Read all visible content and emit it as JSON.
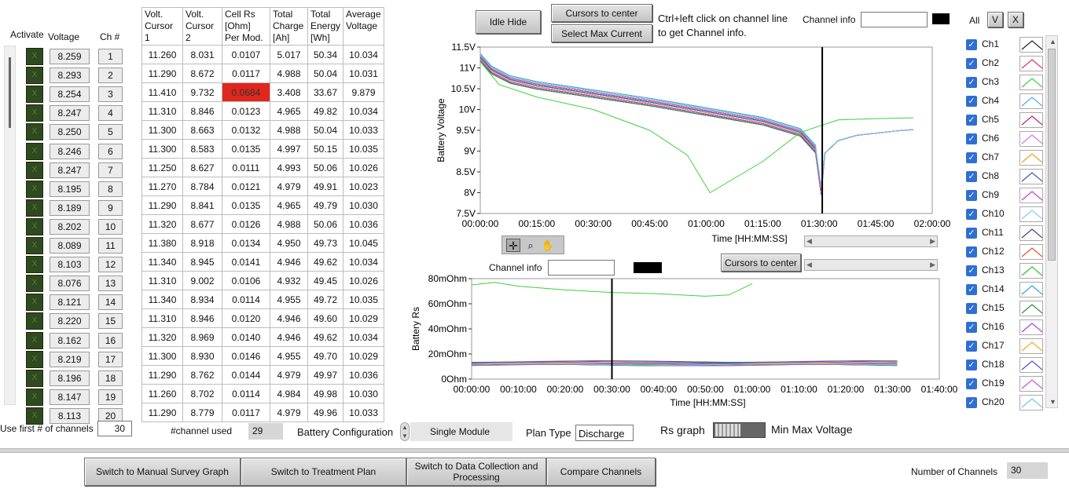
{
  "left_table": {
    "activate_label": "Activate",
    "voltage_label": "Voltage",
    "ch_label": "Ch #",
    "activate_mark": "X",
    "rows": [
      {
        "v": "8.259",
        "ch": "1"
      },
      {
        "v": "8.293",
        "ch": "2"
      },
      {
        "v": "8.254",
        "ch": "3"
      },
      {
        "v": "8.247",
        "ch": "4"
      },
      {
        "v": "8.250",
        "ch": "5"
      },
      {
        "v": "8.246",
        "ch": "6"
      },
      {
        "v": "8.247",
        "ch": "7"
      },
      {
        "v": "8.195",
        "ch": "8"
      },
      {
        "v": "8.189",
        "ch": "9"
      },
      {
        "v": "8.202",
        "ch": "10"
      },
      {
        "v": "8.089",
        "ch": "11"
      },
      {
        "v": "8.103",
        "ch": "12"
      },
      {
        "v": "8.076",
        "ch": "13"
      },
      {
        "v": "8.121",
        "ch": "14"
      },
      {
        "v": "8.220",
        "ch": "15"
      },
      {
        "v": "8.162",
        "ch": "16"
      },
      {
        "v": "8.219",
        "ch": "17"
      },
      {
        "v": "8.196",
        "ch": "18"
      },
      {
        "v": "8.147",
        "ch": "19"
      },
      {
        "v": "8.113",
        "ch": "20"
      }
    ]
  },
  "grid": {
    "headers": [
      "Volt.\nCursor\n1",
      "Volt.\nCursor\n2",
      "Cell Rs\n[Ohm]\nPer Mod.",
      "Total\nCharge\n[Ah]",
      "Total\nEnergy\n[Wh]",
      "Average\nVoltage"
    ],
    "rows": [
      [
        "11.260",
        "8.031",
        "0.0107",
        "5.017",
        "50.34",
        "10.034"
      ],
      [
        "11.290",
        "8.672",
        "0.0117",
        "4.988",
        "50.04",
        "10.031"
      ],
      [
        "11.410",
        "9.732",
        "0.0684",
        "3.408",
        "33.67",
        "9.879"
      ],
      [
        "11.310",
        "8.846",
        "0.0123",
        "4.965",
        "49.82",
        "10.034"
      ],
      [
        "11.300",
        "8.663",
        "0.0132",
        "4.988",
        "50.04",
        "10.033"
      ],
      [
        "11.300",
        "8.583",
        "0.0135",
        "4.997",
        "50.15",
        "10.035"
      ],
      [
        "11.250",
        "8.627",
        "0.0111",
        "4.993",
        "50.06",
        "10.026"
      ],
      [
        "11.270",
        "8.784",
        "0.0121",
        "4.979",
        "49.91",
        "10.023"
      ],
      [
        "11.290",
        "8.841",
        "0.0135",
        "4.965",
        "49.79",
        "10.030"
      ],
      [
        "11.320",
        "8.677",
        "0.0126",
        "4.988",
        "50.06",
        "10.036"
      ],
      [
        "11.380",
        "8.918",
        "0.0134",
        "4.950",
        "49.73",
        "10.045"
      ],
      [
        "11.340",
        "8.945",
        "0.0141",
        "4.946",
        "49.62",
        "10.034"
      ],
      [
        "11.310",
        "9.002",
        "0.0106",
        "4.932",
        "49.45",
        "10.026"
      ],
      [
        "11.340",
        "8.934",
        "0.0114",
        "4.955",
        "49.72",
        "10.035"
      ],
      [
        "11.310",
        "8.946",
        "0.0120",
        "4.946",
        "49.60",
        "10.029"
      ],
      [
        "11.320",
        "8.969",
        "0.0140",
        "4.946",
        "49.62",
        "10.034"
      ],
      [
        "11.300",
        "8.930",
        "0.0146",
        "4.955",
        "49.70",
        "10.029"
      ],
      [
        "11.290",
        "8.762",
        "0.0144",
        "4.979",
        "49.97",
        "10.036"
      ],
      [
        "11.260",
        "8.702",
        "0.0114",
        "4.984",
        "49.98",
        "10.030"
      ],
      [
        "11.290",
        "8.779",
        "0.0117",
        "4.979",
        "49.96",
        "10.033"
      ]
    ],
    "highlight_color": "#e0271d"
  },
  "top_controls": {
    "idle_hide": "Idle Hide",
    "cursors_to_center": "Cursors to center",
    "select_max_current": "Select  Max Current",
    "hint_line1": "Ctrl+left click on channel line",
    "hint_line2": "to get Channel info.",
    "channel_info_label": "Channel info",
    "channel_info_value": "",
    "all_label": "All",
    "all_v": "V",
    "all_x": "X"
  },
  "voltage_chart": {
    "ylabel": "Battery Voltage",
    "xlabel": "Time [HH:MM:SS]",
    "y_ticks": [
      "11.5V",
      "11V",
      "10.5V",
      "10V",
      "9.5V",
      "9V",
      "8.5V",
      "8V",
      "7.5V"
    ],
    "x_ticks": [
      "00:00:00",
      "00:15:00",
      "00:30:00",
      "00:45:00",
      "01:00:00",
      "01:15:00",
      "01:30:00",
      "01:45:00",
      "02:00:00"
    ]
  },
  "rs_chart": {
    "channel_info_label": "Channel info",
    "channel_info_value": "",
    "cursors_to_center": "Cursors to center",
    "ylabel": "Battery Rs",
    "xlabel": "Time [HH:MM:SS]",
    "y_ticks": [
      "80mOhm",
      "60mOhm",
      "40mOhm",
      "20mOhm",
      "0Ohm"
    ],
    "x_ticks": [
      "00:00:00",
      "00:10:00",
      "00:20:00",
      "00:30:00",
      "00:40:00",
      "00:50:00",
      "01:00:00",
      "01:10:00",
      "01:20:00",
      "01:30:00",
      "01:40:00"
    ]
  },
  "channels": [
    {
      "label": "Ch1",
      "color": "#222222"
    },
    {
      "label": "Ch2",
      "color": "#e0306a"
    },
    {
      "label": "Ch3",
      "color": "#3ed13e"
    },
    {
      "label": "Ch4",
      "color": "#4aa8e8"
    },
    {
      "label": "Ch5",
      "color": "#b0207a"
    },
    {
      "label": "Ch6",
      "color": "#e070d8"
    },
    {
      "label": "Ch7",
      "color": "#e8a020"
    },
    {
      "label": "Ch8",
      "color": "#3a5a9a"
    },
    {
      "label": "Ch9",
      "color": "#c040c0"
    },
    {
      "label": "Ch10",
      "color": "#7fd0f0"
    },
    {
      "label": "Ch11",
      "color": "#404090"
    },
    {
      "label": "Ch12",
      "color": "#e05030"
    },
    {
      "label": "Ch13",
      "color": "#30c030"
    },
    {
      "label": "Ch14",
      "color": "#30a0e0"
    },
    {
      "label": "Ch15",
      "color": "#2a8a4a"
    },
    {
      "label": "Ch16",
      "color": "#b040d0"
    },
    {
      "label": "Ch17",
      "color": "#e0b020"
    },
    {
      "label": "Ch18",
      "color": "#5050c0"
    },
    {
      "label": "Ch19",
      "color": "#d050d0"
    },
    {
      "label": "Ch20",
      "color": "#70c8f0"
    }
  ],
  "bottom_controls": {
    "use_first_label": "Use first # of channels",
    "use_first_value": "30",
    "channel_used_label": "#channel used",
    "channel_used_value": "29",
    "battery_config_label": "Battery Configuration",
    "battery_config_value": "Single Module",
    "plan_type_label": "Plan Type",
    "plan_type_value": "Discharge",
    "rs_graph_label": "Rs graph",
    "min_max_label": "Min Max Voltage"
  },
  "footer": {
    "manual_survey": "Switch to Manual  Survey Graph",
    "treatment_plan": "Switch to Treatment Plan",
    "data_collection": "Switch to Data Collection and Processing",
    "compare_channels": "Compare  Channels",
    "num_channels_label": "Number of  Channels",
    "num_channels_value": "30"
  }
}
